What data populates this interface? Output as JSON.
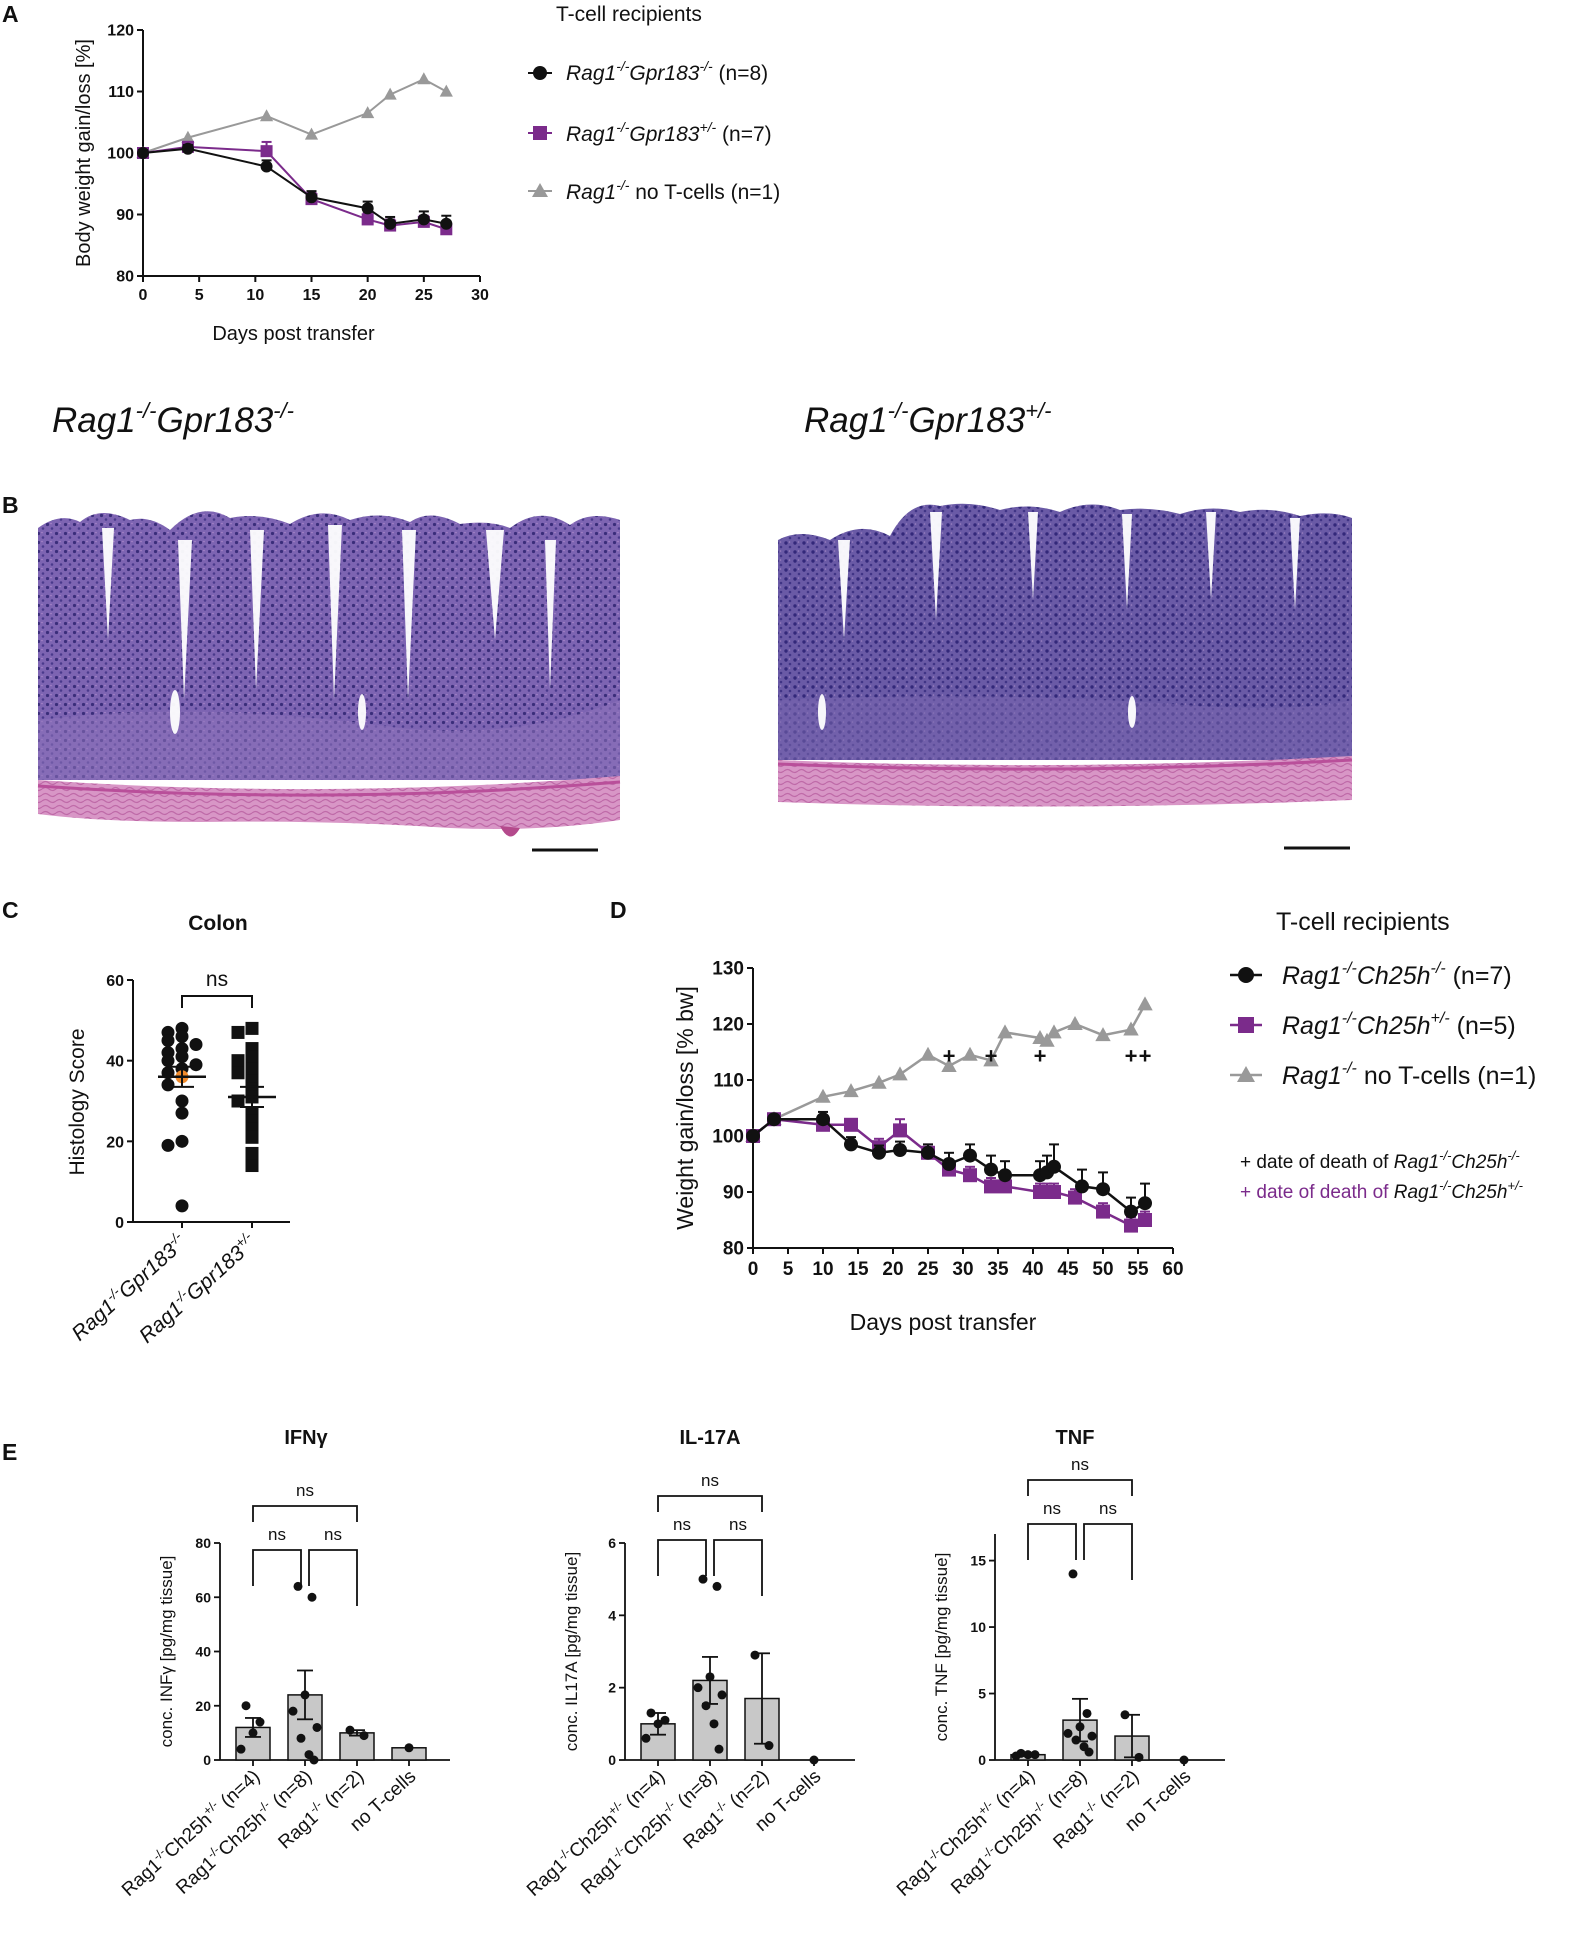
{
  "panel_labels": {
    "a": "A",
    "b": "B",
    "c": "C",
    "d": "D",
    "e": "E"
  },
  "colors": {
    "black": "#111111",
    "purple": "#7b2b8b",
    "gray": "#999999",
    "orange": "#f08a2b",
    "bar_fill": "#c8c8c8",
    "plus_maroon": "#8a2447",
    "tissue_pink": "#cf88bc",
    "tissue_purple": "#5c3e8e"
  },
  "panel_a": {
    "legend_title": "T-cell recipients",
    "legend": [
      {
        "gene": "Rag1",
        "gene_sup": "-/-",
        "gene2": "Gpr183",
        "gene2_sup": "-/-",
        "n": " (n=8)",
        "marker": "circle",
        "color": "#111111"
      },
      {
        "gene": "Rag1",
        "gene_sup": "-/-",
        "gene2": "Gpr183",
        "gene2_sup": "+/-",
        "n": " (n=7)",
        "marker": "square",
        "color": "#7b2b8b"
      },
      {
        "gene": "Rag1",
        "gene_sup": "-/-",
        "gene2": "",
        "gene2_sup": "",
        "n": " no T-cells (n=1)",
        "marker": "triangle",
        "color": "#999999"
      }
    ]
  },
  "panel_b": {
    "left_title": {
      "gene": "Rag1",
      "gene_sup": "-/-",
      "gene2": "Gpr183",
      "gene2_sup": "-/-"
    },
    "right_title": {
      "gene": "Rag1",
      "gene_sup": "-/-",
      "gene2": "Gpr183",
      "gene2_sup": "+/-"
    }
  },
  "panel_c": {
    "sig_label": "ns"
  },
  "panel_d": {
    "legend_title": "T-cell recipients",
    "legend": [
      {
        "gene": "Rag1",
        "gene_sup": "-/-",
        "gene2": "Ch25h",
        "gene2_sup": "-/-",
        "n": " (n=7)",
        "marker": "circle",
        "color": "#111111"
      },
      {
        "gene": "Rag1",
        "gene_sup": "-/-",
        "gene2": "Ch25h",
        "gene2_sup": "+/-",
        "n": " (n=5)",
        "marker": "square",
        "color": "#7b2b8b"
      },
      {
        "gene": "Rag1",
        "gene_sup": "-/-",
        "gene2": "",
        "gene2_sup": "",
        "n": " no T-cells (n=1)",
        "marker": "triangle",
        "color": "#999999"
      }
    ],
    "death_notes": [
      {
        "prefix": "+ date of death of ",
        "gene": "Rag1",
        "gene_sup": "-/-",
        "gene2": "Ch25h",
        "gene2_sup": "-/-",
        "color": "#111111"
      },
      {
        "prefix": "+ date of death of ",
        "gene": "Rag1",
        "gene_sup": "-/-",
        "gene2": "Ch25h",
        "gene2_sup": "+/-",
        "color": "#7b2b8b"
      }
    ]
  },
  "panel_e": {
    "sig_label": "ns"
  },
  "chart_data": [
    {
      "id": "A",
      "type": "line",
      "title": "",
      "xlabel": "Days  post transfer",
      "ylabel": "Body weight gain/loss [%]",
      "xlim": [
        0,
        30
      ],
      "ylim": [
        80,
        120
      ],
      "xticks": [
        0,
        5,
        10,
        15,
        20,
        25,
        30
      ],
      "yticks": [
        80,
        90,
        100,
        110,
        120
      ],
      "series": [
        {
          "name": "Rag1-/-Gpr183-/- (n=8)",
          "marker": "circle",
          "color": "#111111",
          "x": [
            0,
            4,
            11,
            15,
            20,
            22,
            25,
            27
          ],
          "y": [
            100,
            100.7,
            97.8,
            92.8,
            91,
            88.5,
            89.2,
            88.5
          ],
          "err": [
            0.5,
            0.6,
            1.0,
            1.0,
            1.1,
            1.1,
            1.3,
            1.3
          ]
        },
        {
          "name": "Rag1-/-Gpr183+/- (n=7)",
          "marker": "square",
          "color": "#7b2b8b",
          "x": [
            0,
            4,
            11,
            15,
            20,
            22,
            25,
            27
          ],
          "y": [
            100,
            101,
            100.3,
            92.5,
            89.2,
            88.2,
            88.8,
            87.6
          ],
          "err": [
            0.5,
            0.6,
            1.5,
            1.0,
            1.0,
            1.0,
            1.0,
            1.0
          ]
        },
        {
          "name": "Rag1-/- no T-cells (n=1)",
          "marker": "triangle",
          "color": "#999999",
          "x": [
            0,
            4,
            11,
            15,
            20,
            22,
            25,
            27
          ],
          "y": [
            100,
            102.5,
            106,
            103,
            106.5,
            109.5,
            112,
            110
          ]
        }
      ]
    },
    {
      "id": "C",
      "type": "scatter",
      "title": "Colon",
      "xlabel": "",
      "ylabel": "Histology Score",
      "ylim": [
        0,
        60
      ],
      "yticks": [
        0,
        20,
        40,
        60
      ],
      "categories": [
        "Rag1-/-Gpr183-/-",
        "Rag1-/-Gpr183+/-"
      ],
      "groups": [
        {
          "name": "Rag1-/-Gpr183-/-",
          "marker": "circle",
          "mean": 36,
          "sem": 2.5,
          "values": [
            48,
            47,
            46,
            45,
            44,
            43,
            42,
            41,
            40,
            39,
            38,
            37,
            36,
            34,
            30,
            27,
            20,
            19,
            4
          ],
          "highlight_value": 36
        },
        {
          "name": "Rag1-/-Gpr183+/-",
          "marker": "square",
          "mean": 31,
          "sem": 2.5,
          "values": [
            48,
            47,
            43,
            41,
            40,
            38,
            37,
            35,
            33,
            31,
            30,
            27,
            25,
            23,
            21,
            17,
            14
          ],
          "highlight_value": 34
        }
      ],
      "comparison": {
        "groups": [
          0,
          1
        ],
        "label": "ns"
      }
    },
    {
      "id": "D",
      "type": "line",
      "title": "",
      "xlabel": "Days  post transfer",
      "ylabel": "Weight gain/loss [% bw]",
      "xlim": [
        0,
        60
      ],
      "ylim": [
        80,
        130
      ],
      "xticks": [
        0,
        5,
        10,
        15,
        20,
        25,
        30,
        35,
        40,
        45,
        50,
        55,
        60
      ],
      "yticks": [
        80,
        90,
        100,
        110,
        120,
        130
      ],
      "series": [
        {
          "name": "Rag1-/-Ch25h-/- (n=7)",
          "marker": "circle",
          "color": "#111111",
          "x": [
            0,
            3,
            10,
            14,
            18,
            21,
            25,
            28,
            31,
            34,
            36,
            41,
            42,
            43,
            47,
            50,
            54,
            56
          ],
          "y": [
            100,
            103,
            103,
            98.5,
            97,
            97.5,
            97,
            95,
            96.5,
            94,
            93,
            93,
            93.5,
            94.5,
            91,
            90.5,
            86.5,
            88
          ],
          "err": [
            0.5,
            0.5,
            1.3,
            1.3,
            1.3,
            1.5,
            1.5,
            2.0,
            2.0,
            2.5,
            2.5,
            2.5,
            3.0,
            4.0,
            3.0,
            3.0,
            2.5,
            3.5
          ]
        },
        {
          "name": "Rag1-/-Ch25h+/- (n=5)",
          "marker": "square",
          "color": "#7b2b8b",
          "x": [
            0,
            3,
            10,
            14,
            18,
            21,
            25,
            28,
            31,
            34,
            36,
            41,
            42,
            43,
            46,
            50,
            54,
            56
          ],
          "y": [
            100,
            103,
            102,
            102,
            98,
            101,
            97,
            94,
            93,
            91,
            91,
            90,
            90,
            90,
            89,
            86.5,
            84,
            85
          ],
          "err": [
            0.5,
            0.5,
            1.0,
            1.0,
            1.5,
            2.0,
            1.5,
            1.5,
            1.5,
            1.5,
            1.5,
            1.5,
            1.5,
            1.5,
            1.5,
            1.5,
            1.5,
            1.5
          ]
        },
        {
          "name": "Rag1-/- no T-cells (n=1)",
          "marker": "triangle",
          "color": "#999999",
          "x": [
            0,
            3,
            10,
            14,
            18,
            21,
            25,
            28,
            31,
            34,
            36,
            41,
            42,
            43,
            46,
            50,
            54,
            56
          ],
          "y": [
            100,
            103,
            107,
            108,
            109.5,
            111,
            114.5,
            112.5,
            114.5,
            113.5,
            118.5,
            117.5,
            117,
            118.5,
            120,
            118,
            119,
            123.5
          ]
        }
      ],
      "deaths": [
        {
          "group": "Rag1-/-Ch25h+/-",
          "color": "#8a2447",
          "x": [
            28,
            34
          ],
          "y_mark": 114
        },
        {
          "group": "Rag1-/-Ch25h-/-",
          "color": "#111111",
          "x": [
            41,
            54,
            56
          ],
          "y_mark": 114
        }
      ]
    },
    {
      "id": "E1",
      "type": "bar",
      "title": "IFNγ",
      "ylabel": "conc. INFγ [pg/mg tissue]",
      "ylim": [
        0,
        80
      ],
      "yticks": [
        0,
        20,
        40,
        60,
        80
      ],
      "categories": [
        "Rag1-/-Ch25h+/-  (n=4)",
        "Rag1-/-Ch25h-/- (n=8)",
        "Rag1-/- (n=2)",
        "no T-cells"
      ],
      "values": [
        12,
        24,
        10,
        4.5
      ],
      "err": [
        3.5,
        9,
        1,
        0
      ],
      "points": [
        [
          20,
          14,
          10,
          4
        ],
        [
          64,
          60,
          24,
          18,
          12,
          8,
          2,
          0
        ],
        [
          11,
          9
        ],
        [
          4.5
        ]
      ],
      "comparisons": [
        {
          "groups": [
            0,
            2
          ],
          "label": "ns"
        },
        {
          "groups": [
            0,
            1
          ],
          "label": "ns"
        },
        {
          "groups": [
            1,
            2
          ],
          "label": "ns"
        }
      ]
    },
    {
      "id": "E2",
      "type": "bar",
      "title": "IL-17A",
      "ylabel": "conc. IL17A [pg/mg tissue]",
      "ylim": [
        0,
        6
      ],
      "yticks": [
        0,
        2,
        4,
        6
      ],
      "categories": [
        "Rag1-/-Ch25h+/-  (n=4)",
        "Rag1-/-Ch25h-/- (n=8)",
        "Rag1-/- (n=2)",
        "no T-cells"
      ],
      "values": [
        1.0,
        2.2,
        1.7,
        0
      ],
      "err": [
        0.3,
        0.65,
        1.25,
        0
      ],
      "points": [
        [
          1.3,
          1.1,
          1.0,
          0.6
        ],
        [
          5.0,
          4.8,
          2.3,
          2.0,
          1.8,
          1.5,
          1.0,
          0.3
        ],
        [
          2.9,
          0.4
        ],
        [
          0
        ]
      ],
      "comparisons": [
        {
          "groups": [
            0,
            2
          ],
          "label": "ns"
        },
        {
          "groups": [
            0,
            1
          ],
          "label": "ns"
        },
        {
          "groups": [
            1,
            2
          ],
          "label": "ns"
        }
      ]
    },
    {
      "id": "E3",
      "type": "bar",
      "title": "TNF",
      "ylabel": "conc. TNF [pg/mg tissue]",
      "ylim": [
        0,
        17
      ],
      "yticks": [
        0,
        5,
        10,
        15
      ],
      "categories": [
        "Rag1-/-Ch25h+/-  (n=4)",
        "Rag1-/-Ch25h-/- (n=8)",
        "Rag1-/- (n=2)",
        "no T-cells"
      ],
      "values": [
        0.4,
        3.0,
        1.8,
        0
      ],
      "err": [
        0.1,
        1.6,
        1.6,
        0
      ],
      "points": [
        [
          0.5,
          0.4,
          0.4,
          0.3
        ],
        [
          14,
          3.5,
          2.5,
          2.0,
          1.8,
          1.5,
          1.0,
          0.6
        ],
        [
          3.4,
          0.2
        ],
        [
          0
        ]
      ],
      "comparisons": [
        {
          "groups": [
            0,
            2
          ],
          "label": "ns"
        },
        {
          "groups": [
            0,
            1
          ],
          "label": "ns"
        },
        {
          "groups": [
            1,
            2
          ],
          "label": "ns"
        }
      ]
    }
  ]
}
